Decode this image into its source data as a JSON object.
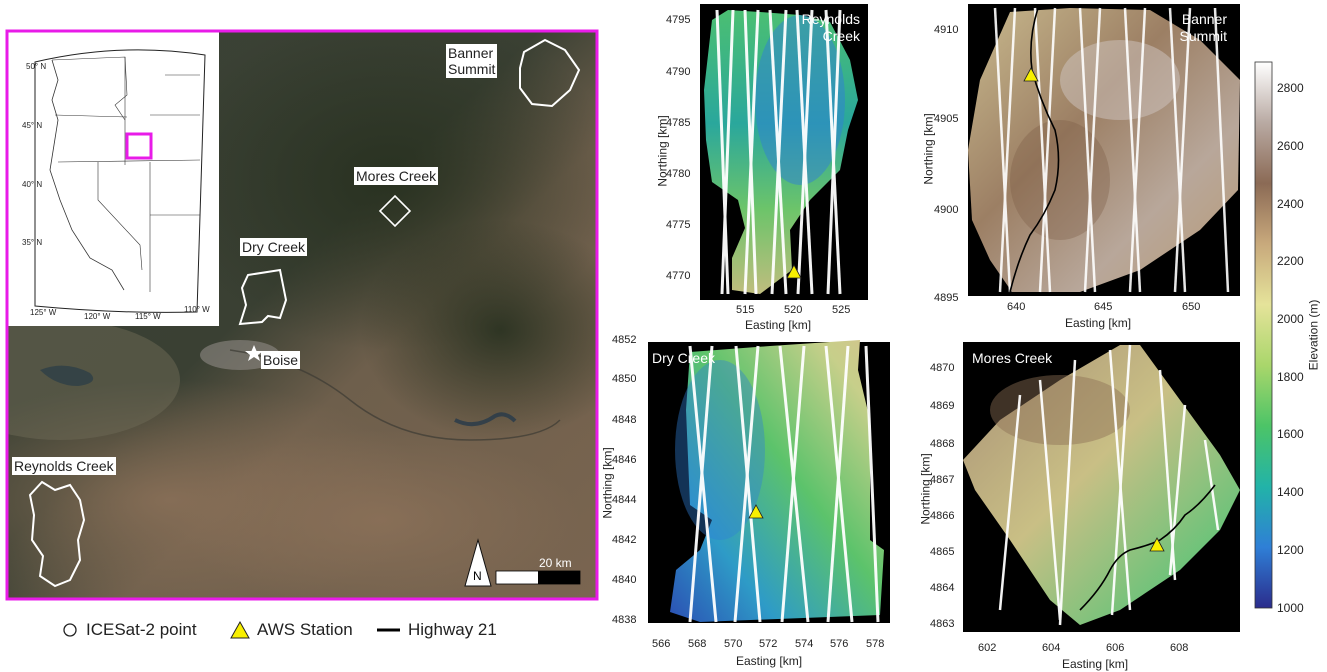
{
  "overview": {
    "site_labels": {
      "banner": [
        "Banner",
        "Summit"
      ],
      "mores": "Mores Creek",
      "dry": "Dry Creek",
      "boise": "Boise",
      "reynolds": "Reynolds Creek"
    },
    "scale_bar_label": "20 km",
    "north_label": "N",
    "frame_color": "#e81be8"
  },
  "inset": {
    "lat_labels": [
      "50° N",
      "45° N",
      "40° N",
      "35° N"
    ],
    "lon_labels": [
      "125° W",
      "120° W",
      "115° W",
      "110° W"
    ],
    "highlight_color": "#e81be8"
  },
  "legend": {
    "items": [
      {
        "icon": "circle",
        "label": "ICESat-2 point"
      },
      {
        "icon": "triangle",
        "label": "AWS Station"
      },
      {
        "icon": "line",
        "label": "Highway 21"
      }
    ]
  },
  "panels": [
    {
      "id": "reynolds",
      "title": [
        "Reynolds",
        "Creek"
      ],
      "xlabel": "Easting [km]",
      "ylabel": "Northing [km]",
      "xticks": [
        "515",
        "520",
        "525"
      ],
      "yticks": [
        "4795",
        "4790",
        "4785",
        "4780",
        "4775",
        "4770"
      ]
    },
    {
      "id": "banner",
      "title": [
        "Banner",
        "Summit"
      ],
      "xlabel": "Easting [km]",
      "ylabel": "Northing [km]",
      "xticks": [
        "640",
        "645",
        "650"
      ],
      "yticks": [
        "4910",
        "4905",
        "4900",
        "4895"
      ]
    },
    {
      "id": "dry",
      "title": [
        "Dry Creek"
      ],
      "xlabel": "Easting [km]",
      "ylabel": "Northing [km]",
      "xticks": [
        "566",
        "568",
        "570",
        "572",
        "574",
        "576",
        "578"
      ],
      "yticks": [
        "4852",
        "4850",
        "4848",
        "4846",
        "4844",
        "4842",
        "4840",
        "4838"
      ]
    },
    {
      "id": "mores",
      "title": [
        "Mores Creek"
      ],
      "xlabel": "Easting [km]",
      "ylabel": "Northing [km]",
      "xticks": [
        "602",
        "604",
        "606",
        "608"
      ],
      "yticks": [
        "4870",
        "4869",
        "4868",
        "4867",
        "4866",
        "4865",
        "4864",
        "4863"
      ]
    }
  ],
  "colorbar": {
    "label": "Elevation (m)",
    "ticks": [
      "2800",
      "2600",
      "2400",
      "2200",
      "2000",
      "1800",
      "1600",
      "1400",
      "1200",
      "1000"
    ],
    "colors": [
      "#2b2c8c",
      "#2f7fd6",
      "#22b3a8",
      "#4cc467",
      "#a9d66b",
      "#e5e39a",
      "#c8a97c",
      "#8b6a55",
      "#b9aaa3",
      "#ffffff"
    ]
  }
}
